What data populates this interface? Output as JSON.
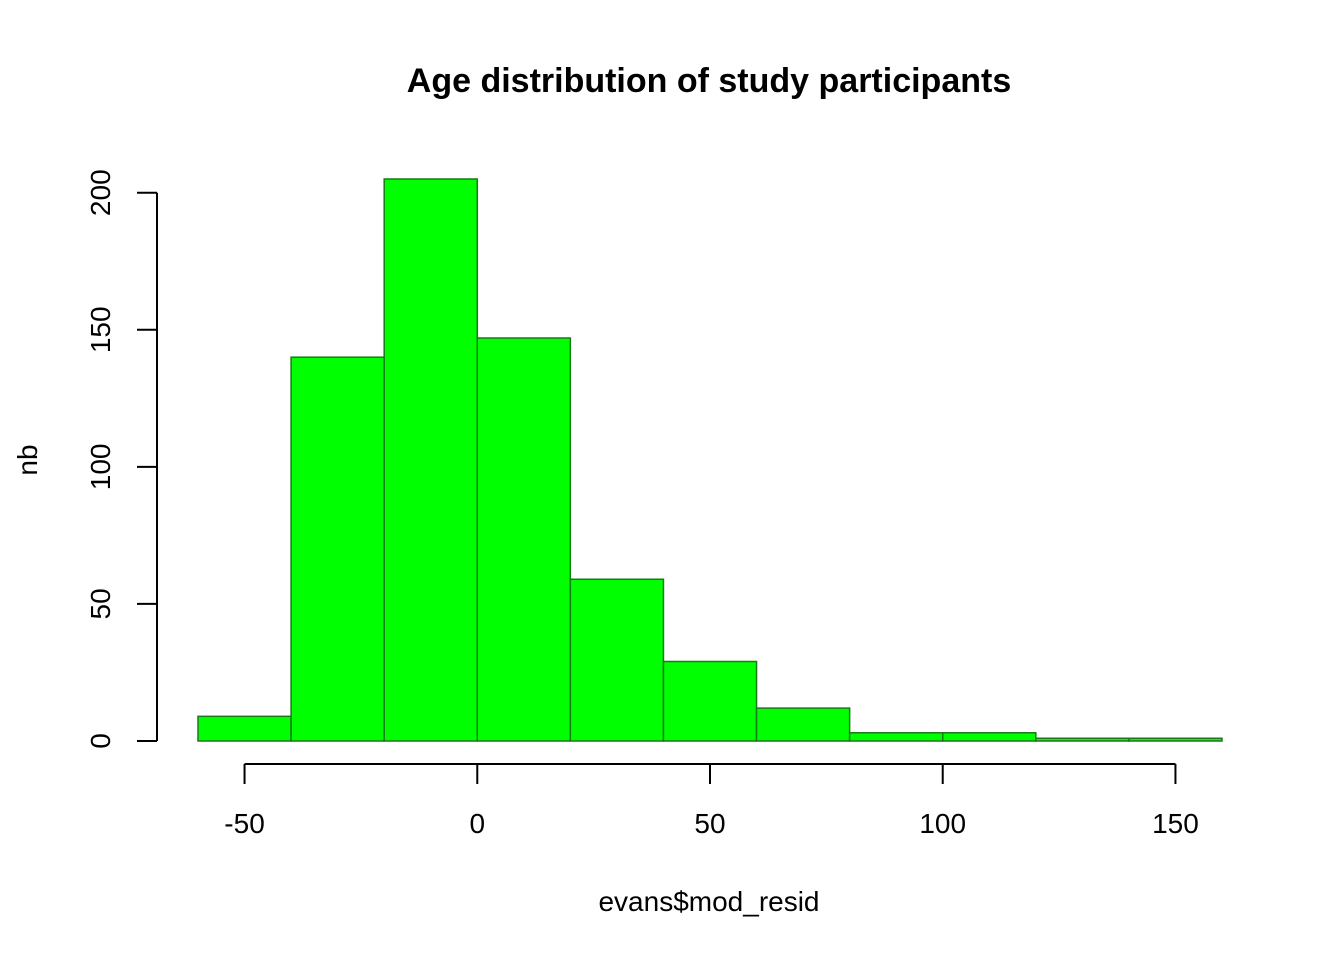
{
  "chart_data": {
    "type": "bar",
    "title": "Age distribution of study participants",
    "xlabel": "evans$mod_resid",
    "ylabel": "nb",
    "bar_color": "#00ff00",
    "bar_border_color": "#1a7a1a",
    "bins": [
      {
        "from": -60,
        "to": -40,
        "count": 9
      },
      {
        "from": -40,
        "to": -20,
        "count": 140
      },
      {
        "from": -20,
        "to": 0,
        "count": 205
      },
      {
        "from": 0,
        "to": 20,
        "count": 147
      },
      {
        "from": 20,
        "to": 40,
        "count": 59
      },
      {
        "from": 40,
        "to": 60,
        "count": 29
      },
      {
        "from": 60,
        "to": 80,
        "count": 12
      },
      {
        "from": 80,
        "to": 100,
        "count": 3
      },
      {
        "from": 100,
        "to": 120,
        "count": 3
      },
      {
        "from": 120,
        "to": 140,
        "count": 1
      },
      {
        "from": 140,
        "to": 160,
        "count": 1
      }
    ],
    "xlim": [
      -60,
      160
    ],
    "ylim": [
      0,
      205
    ],
    "x_ticks": [
      -50,
      0,
      50,
      100,
      150
    ],
    "y_ticks": [
      0,
      50,
      100,
      150,
      200
    ],
    "grid": false,
    "legend": "none"
  }
}
